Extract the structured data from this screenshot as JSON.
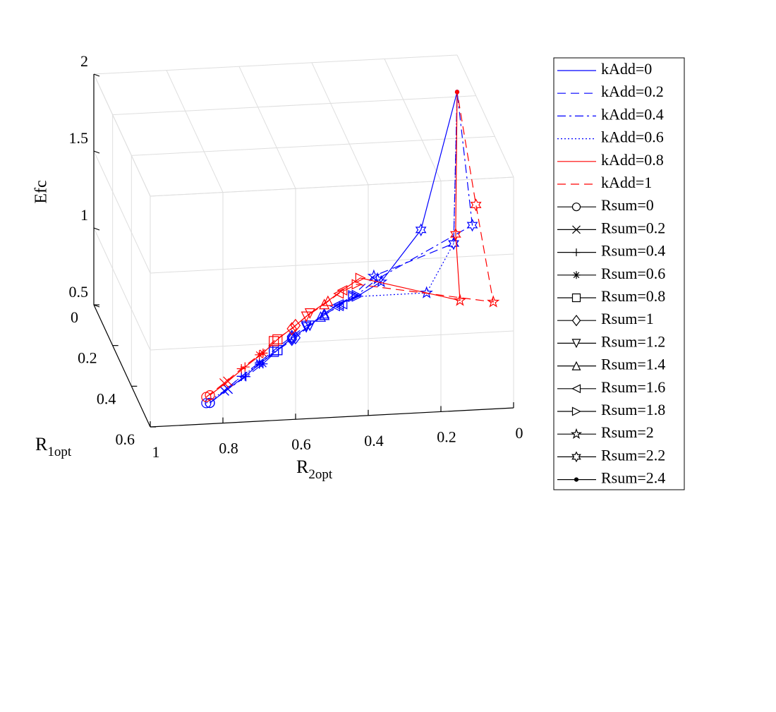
{
  "chart_data": {
    "type": "line3d",
    "x_label": "R",
    "x_label_sub": "2opt",
    "y_label": "R",
    "y_label_sub": "1opt",
    "z_label": "Efc",
    "xlim": [
      0,
      1
    ],
    "xticks": [
      0,
      0.2,
      0.4,
      0.6,
      0.8,
      1
    ],
    "xdir": "reverse",
    "ylim": [
      0,
      0.6
    ],
    "yticks": [
      0,
      0.2,
      0.4,
      0.6
    ],
    "zlim": [
      0.5,
      2
    ],
    "zticks": [
      0.5,
      1,
      1.5,
      2
    ],
    "grid": true,
    "series": [
      {
        "name": "kAdd=0",
        "color": "#0000ff",
        "dash": "solid",
        "x": [
          0.81,
          0.75,
          0.69,
          0.64,
          0.58,
          0.53,
          0.47,
          0.42,
          0.37,
          0.31,
          0.23,
          0.11,
          0
        ],
        "y": [
          0.5,
          0.46,
          0.41,
          0.37,
          0.33,
          0.29,
          0.25,
          0.21,
          0.17,
          0.13,
          0.08,
          0.04,
          0
        ],
        "z": [
          0.5,
          0.53,
          0.54,
          0.56,
          0.59,
          0.61,
          0.63,
          0.65,
          0.65,
          0.64,
          0.66,
          0.93,
          1.76
        ]
      },
      {
        "name": "kAdd=0.2",
        "color": "#0000ff",
        "dash": "dashed",
        "x": [
          0.81,
          0.76,
          0.7,
          0.64,
          0.59,
          0.53,
          0.48,
          0.42,
          0.37,
          0.32,
          0.25,
          0.02,
          0
        ],
        "y": [
          0.5,
          0.46,
          0.41,
          0.37,
          0.33,
          0.29,
          0.25,
          0.21,
          0.17,
          0.13,
          0.08,
          0.04,
          0
        ],
        "z": [
          0.5,
          0.52,
          0.54,
          0.57,
          0.59,
          0.62,
          0.63,
          0.64,
          0.64,
          0.65,
          0.7,
          0.83,
          1.76
        ]
      },
      {
        "name": "kAdd=0.4",
        "color": "#0000ff",
        "dash": "dashdot",
        "x": [
          0.81,
          0.75,
          0.69,
          0.63,
          0.58,
          0.52,
          0.47,
          0.42,
          0.36,
          0.31,
          0.24,
          0.01,
          0
        ],
        "y": [
          0.5,
          0.46,
          0.42,
          0.37,
          0.33,
          0.29,
          0.25,
          0.21,
          0.17,
          0.13,
          0.08,
          0.2,
          0
        ],
        "z": [
          0.5,
          0.53,
          0.55,
          0.56,
          0.59,
          0.61,
          0.63,
          0.64,
          0.65,
          0.65,
          0.68,
          1.16,
          1.76
        ]
      },
      {
        "name": "kAdd=0.6",
        "color": "#0000ff",
        "dash": "dotted",
        "x": [
          0.82,
          0.76,
          0.7,
          0.64,
          0.59,
          0.53,
          0.48,
          0.43,
          0.38,
          0.32,
          0.11,
          0.02,
          0
        ],
        "y": [
          0.5,
          0.46,
          0.41,
          0.37,
          0.33,
          0.29,
          0.25,
          0.21,
          0.17,
          0.13,
          0.1,
          0.04,
          0
        ],
        "z": [
          0.5,
          0.52,
          0.54,
          0.56,
          0.58,
          0.6,
          0.62,
          0.63,
          0.64,
          0.64,
          0.6,
          0.83,
          1.76
        ]
      },
      {
        "name": "kAdd=0.8",
        "color": "#ff0000",
        "dash": "solid",
        "x": [
          0.81,
          0.75,
          0.69,
          0.63,
          0.58,
          0.52,
          0.47,
          0.41,
          0.36,
          0.3,
          0.07,
          0.03,
          0
        ],
        "y": [
          0.5,
          0.46,
          0.41,
          0.37,
          0.33,
          0.29,
          0.25,
          0.21,
          0.17,
          0.13,
          0.3,
          0.1,
          0
        ],
        "z": [
          0.55,
          0.58,
          0.6,
          0.63,
          0.66,
          0.69,
          0.71,
          0.73,
          0.74,
          0.76,
          0.81,
          0.97,
          1.76
        ]
      },
      {
        "name": "kAdd=1",
        "color": "#ff0000",
        "dash": "dashed",
        "x": [
          0.82,
          0.76,
          0.7,
          0.64,
          0.59,
          0.53,
          0.48,
          0.42,
          0.37,
          0.31,
          0.03,
          0.0,
          0
        ],
        "y": [
          0.5,
          0.46,
          0.41,
          0.37,
          0.33,
          0.29,
          0.25,
          0.21,
          0.17,
          0.13,
          0.5,
          0.2,
          0
        ],
        "z": [
          0.54,
          0.57,
          0.59,
          0.62,
          0.65,
          0.67,
          0.69,
          0.71,
          0.72,
          0.72,
          1.06,
          1.29,
          1.76
        ]
      }
    ],
    "marker_legend": [
      {
        "name": "Rsum=0",
        "marker": "o"
      },
      {
        "name": "Rsum=0.2",
        "marker": "x"
      },
      {
        "name": "Rsum=0.4",
        "marker": "+"
      },
      {
        "name": "Rsum=0.6",
        "marker": "*"
      },
      {
        "name": "Rsum=0.8",
        "marker": "s"
      },
      {
        "name": "Rsum=1",
        "marker": "d"
      },
      {
        "name": "Rsum=1.2",
        "marker": "v"
      },
      {
        "name": "Rsum=1.4",
        "marker": "^"
      },
      {
        "name": "Rsum=1.6",
        "marker": "<"
      },
      {
        "name": "Rsum=1.8",
        "marker": ">"
      },
      {
        "name": "Rsum=2",
        "marker": "p"
      },
      {
        "name": "Rsum=2.2",
        "marker": "h"
      },
      {
        "name": "Rsum=2.4",
        "marker": "."
      }
    ]
  }
}
